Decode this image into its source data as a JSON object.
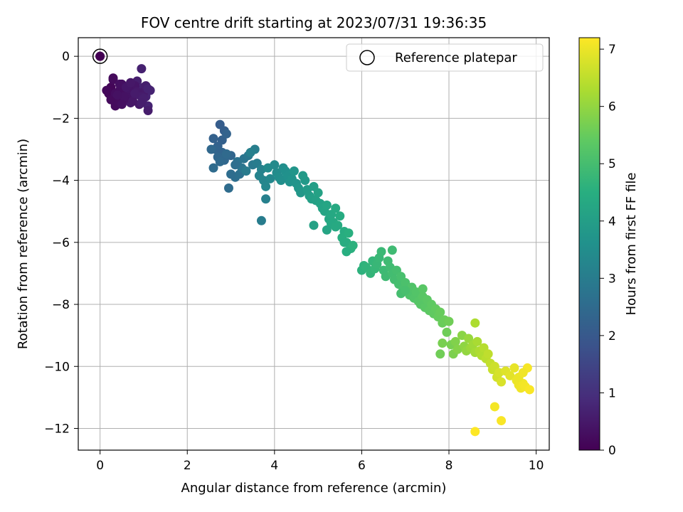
{
  "chart_data": {
    "type": "scatter",
    "title": "FOV centre drift starting at 2023/07/31 19:36:35",
    "xlabel": "Angular distance from reference (arcmin)",
    "ylabel": "Rotation from reference (arcmin)",
    "xlim": [
      -0.5,
      10.3
    ],
    "ylim": [
      -12.7,
      0.6
    ],
    "xticks": [
      0,
      2,
      4,
      6,
      8,
      10
    ],
    "yticks": [
      0,
      -2,
      -4,
      -6,
      -8,
      -10,
      -12
    ],
    "grid": true,
    "legend": {
      "placement": "top-right",
      "entries": [
        "Reference platepar"
      ]
    },
    "reference_point": {
      "x": 0,
      "y": 0
    },
    "colorbar": {
      "label": "Hours from first FF file",
      "min": 0,
      "max": 7.2,
      "ticks": [
        0,
        1,
        2,
        3,
        4,
        5,
        6,
        7
      ],
      "colormap": "viridis"
    },
    "series": [
      {
        "x": [
          0.0,
          0.25,
          0.3,
          0.35,
          0.45,
          0.5,
          0.55,
          0.6,
          0.65,
          0.7,
          0.75,
          0.8,
          0.85,
          0.9,
          0.95,
          1.0,
          1.05,
          1.1,
          1.15,
          0.2,
          0.3,
          0.4,
          0.5,
          0.6,
          0.7,
          0.8,
          0.9,
          1.0,
          1.1,
          0.15,
          0.25,
          0.35,
          0.45,
          0.55,
          0.65,
          0.75,
          0.85,
          0.95,
          1.05,
          0.4,
          0.6,
          0.8,
          1.0,
          0.95,
          1.1,
          0.7,
          0.5,
          0.3,
          2.75,
          2.85,
          2.8,
          2.6,
          2.7,
          2.9,
          2.65,
          2.8,
          3.0,
          2.85,
          2.7,
          2.55,
          2.75,
          2.9,
          2.6,
          2.95,
          3.1,
          3.2,
          3.15,
          3.3,
          3.25,
          3.4,
          3.5,
          3.35,
          3.6,
          3.55,
          3.45,
          3.7,
          3.65,
          3.75,
          3.8,
          3.9,
          3.85,
          3.0,
          3.1,
          3.7,
          3.8,
          4.0,
          4.05,
          4.1,
          4.2,
          4.15,
          4.25,
          4.3,
          4.35,
          4.4,
          4.5,
          4.45,
          4.55,
          4.6,
          4.7,
          4.65,
          4.75,
          4.8,
          4.9,
          4.85,
          4.95,
          5.0,
          5.05,
          5.1,
          5.15,
          5.2,
          5.25,
          5.3,
          5.35,
          5.4,
          5.45,
          5.5,
          5.3,
          5.2,
          5.4,
          5.6,
          5.55,
          5.65,
          5.7,
          5.75,
          5.8,
          5.65,
          5.6,
          4.9,
          6.0,
          6.05,
          6.1,
          6.2,
          6.25,
          6.3,
          6.35,
          6.4,
          6.5,
          6.45,
          6.55,
          6.6,
          6.65,
          6.7,
          6.75,
          6.8,
          6.85,
          6.9,
          6.95,
          7.0,
          7.05,
          7.1,
          7.15,
          7.2,
          7.25,
          7.3,
          7.35,
          7.4,
          7.45,
          7.5,
          7.55,
          7.6,
          7.65,
          7.7,
          7.75,
          7.8,
          7.85,
          7.9,
          7.95,
          8.0,
          7.85,
          7.4,
          6.7,
          6.9,
          7.0,
          8.05,
          8.1,
          8.15,
          8.2,
          8.3,
          8.35,
          8.4,
          8.45,
          8.5,
          8.55,
          8.6,
          8.65,
          8.7,
          8.75,
          8.8,
          8.85,
          8.9,
          8.95,
          9.0,
          9.05,
          9.1,
          9.15,
          9.2,
          9.3,
          9.4,
          9.5,
          9.55,
          9.6,
          9.65,
          9.7,
          9.75,
          9.8,
          9.85,
          9.6,
          9.7,
          9.05,
          9.2,
          8.6,
          8.6,
          7.8
        ],
        "y": [
          0.0,
          -1.0,
          -1.3,
          -1.6,
          -1.1,
          -0.9,
          -1.4,
          -1.2,
          -1.0,
          -1.5,
          -1.3,
          -1.1,
          -0.8,
          -1.25,
          -0.4,
          -1.0,
          -1.3,
          -1.6,
          -1.1,
          -1.2,
          -0.75,
          -1.45,
          -1.05,
          -1.35,
          -1.2,
          -0.95,
          -1.55,
          -1.15,
          -1.75,
          -1.1,
          -1.4,
          -1.2,
          -0.9,
          -1.3,
          -1.05,
          -1.45,
          -1.15,
          -1.3,
          -0.95,
          -1.25,
          -1.0,
          -1.2,
          -1.35,
          -1.5,
          -1.05,
          -0.85,
          -1.55,
          -0.7,
          -2.2,
          -2.4,
          -2.7,
          -2.65,
          -2.9,
          -2.5,
          -3.0,
          -3.1,
          -3.2,
          -3.35,
          -3.25,
          -3.0,
          -3.4,
          -3.15,
          -3.6,
          -4.25,
          -3.9,
          -3.8,
          -3.4,
          -3.3,
          -3.6,
          -3.2,
          -3.5,
          -3.7,
          -3.45,
          -3.0,
          -3.1,
          -3.65,
          -3.85,
          -4.0,
          -4.2,
          -3.95,
          -3.6,
          -3.8,
          -3.5,
          -5.3,
          -4.6,
          -3.5,
          -3.75,
          -3.9,
          -3.6,
          -4.0,
          -3.7,
          -3.85,
          -4.05,
          -3.95,
          -4.1,
          -3.7,
          -4.25,
          -4.4,
          -4.0,
          -3.85,
          -4.3,
          -4.5,
          -4.2,
          -4.6,
          -4.65,
          -4.4,
          -4.75,
          -4.9,
          -5.0,
          -4.8,
          -5.25,
          -5.1,
          -5.35,
          -4.9,
          -5.45,
          -5.15,
          -5.4,
          -5.6,
          -5.5,
          -5.65,
          -5.85,
          -6.0,
          -5.7,
          -6.2,
          -6.1,
          -6.3,
          -6.0,
          -5.45,
          -6.9,
          -6.75,
          -6.8,
          -7.0,
          -6.6,
          -6.85,
          -6.7,
          -6.5,
          -6.9,
          -6.3,
          -7.1,
          -6.6,
          -6.8,
          -7.0,
          -7.2,
          -6.9,
          -7.35,
          -7.1,
          -7.5,
          -7.3,
          -7.6,
          -7.7,
          -7.45,
          -7.8,
          -7.6,
          -7.9,
          -8.0,
          -7.75,
          -8.1,
          -7.85,
          -8.2,
          -8.0,
          -8.3,
          -8.15,
          -8.4,
          -8.25,
          -8.6,
          -8.5,
          -8.9,
          -8.55,
          -9.25,
          -7.5,
          -6.25,
          -7.65,
          -7.55,
          -9.3,
          -9.6,
          -9.2,
          -9.45,
          -9.0,
          -9.35,
          -9.5,
          -9.1,
          -9.4,
          -9.3,
          -9.55,
          -9.2,
          -9.5,
          -9.65,
          -9.4,
          -9.75,
          -9.6,
          -9.9,
          -10.1,
          -10.0,
          -10.35,
          -10.2,
          -10.5,
          -10.15,
          -10.3,
          -10.05,
          -10.45,
          -10.6,
          -10.7,
          -10.55,
          -10.65,
          -10.05,
          -10.75,
          -10.35,
          -10.2,
          -11.3,
          -11.75,
          -12.1,
          -8.6,
          -9.6
        ],
        "t": [
          0.0,
          0.1,
          0.15,
          0.2,
          0.25,
          0.3,
          0.35,
          0.4,
          0.45,
          0.5,
          0.55,
          0.6,
          0.62,
          0.64,
          0.66,
          0.68,
          0.7,
          0.72,
          0.74,
          0.12,
          0.18,
          0.22,
          0.28,
          0.32,
          0.38,
          0.42,
          0.48,
          0.52,
          0.58,
          0.14,
          0.2,
          0.26,
          0.3,
          0.36,
          0.4,
          0.46,
          0.5,
          0.56,
          0.6,
          0.34,
          0.44,
          0.54,
          0.62,
          0.6,
          0.7,
          0.48,
          0.3,
          0.2,
          2.1,
          2.15,
          2.2,
          2.22,
          2.25,
          2.28,
          2.3,
          2.32,
          2.35,
          2.38,
          2.4,
          2.42,
          2.45,
          2.48,
          2.5,
          2.52,
          2.6,
          2.65,
          2.7,
          2.75,
          2.8,
          2.85,
          2.9,
          2.95,
          3.0,
          3.05,
          3.1,
          3.15,
          3.2,
          3.25,
          3.3,
          3.35,
          3.4,
          2.55,
          2.6,
          3.0,
          3.1,
          3.4,
          3.45,
          3.5,
          3.52,
          3.55,
          3.58,
          3.6,
          3.62,
          3.65,
          3.7,
          3.72,
          3.75,
          3.8,
          3.85,
          3.88,
          3.9,
          3.95,
          4.0,
          4.02,
          4.05,
          4.1,
          4.12,
          4.15,
          4.2,
          4.22,
          4.25,
          4.3,
          4.32,
          4.35,
          4.4,
          4.42,
          4.3,
          4.2,
          4.35,
          4.45,
          4.48,
          4.5,
          4.52,
          4.55,
          4.58,
          4.5,
          4.45,
          4.1,
          4.6,
          4.62,
          4.65,
          4.7,
          4.72,
          4.75,
          4.78,
          4.8,
          4.85,
          4.82,
          4.88,
          4.9,
          4.92,
          4.95,
          4.98,
          5.0,
          5.02,
          5.05,
          5.08,
          5.1,
          5.12,
          5.15,
          5.18,
          5.2,
          5.22,
          5.25,
          5.28,
          5.3,
          5.32,
          5.35,
          5.38,
          5.4,
          5.42,
          5.45,
          5.48,
          5.5,
          5.52,
          5.55,
          5.58,
          5.6,
          5.7,
          5.3,
          4.9,
          5.0,
          5.05,
          5.7,
          5.75,
          5.8,
          5.85,
          5.9,
          5.95,
          6.0,
          6.05,
          6.1,
          6.15,
          6.2,
          6.25,
          6.3,
          6.35,
          6.4,
          6.45,
          6.5,
          6.55,
          6.6,
          6.65,
          6.7,
          6.75,
          6.8,
          6.85,
          6.9,
          6.95,
          7.0,
          7.02,
          7.05,
          7.08,
          7.1,
          7.12,
          7.15,
          7.0,
          7.05,
          7.1,
          7.15,
          7.2,
          6.3,
          5.6
        ]
      }
    ]
  }
}
